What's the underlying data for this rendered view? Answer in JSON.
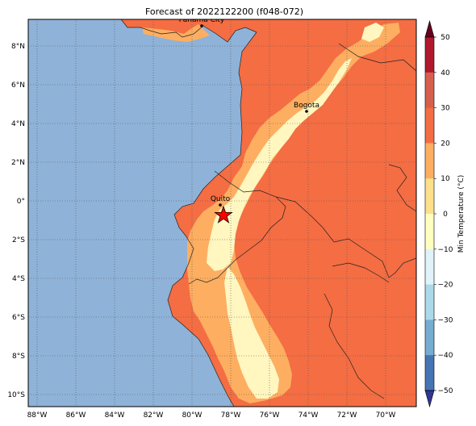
{
  "title": "Forecast of 2022122200 (f048-072)",
  "colorbar": {
    "label": "Min Temperature (°C)",
    "ticks": [
      "50",
      "40",
      "30",
      "20",
      "10",
      "0",
      "−10",
      "−20",
      "−30",
      "−40",
      "−50"
    ],
    "bands": [
      "#67001f",
      "#b2182b",
      "#d6604d",
      "#f46d43",
      "#fdae61",
      "#fee08b",
      "#ffffbf",
      "#e0f3f8",
      "#abd9e9",
      "#74add1",
      "#4575b4",
      "#313695"
    ]
  },
  "lat_labels": [
    "8°N",
    "6°N",
    "4°N",
    "2°N",
    "0°",
    "2°S",
    "4°S",
    "6°S",
    "8°S",
    "10°S"
  ],
  "lon_labels": [
    "88°W",
    "86°W",
    "84°W",
    "82°W",
    "80°W",
    "78°W",
    "76°W",
    "74°W",
    "72°W",
    "70°W"
  ],
  "cities": [
    {
      "name": "Panama City"
    },
    {
      "name": "Bogota"
    },
    {
      "name": "Quito"
    }
  ],
  "colors": {
    "ocean": "#8fb2d8",
    "temp_20_30": "#f46d43",
    "temp_10_20": "#fdae61",
    "temp_0_10": "#fff6c0",
    "marker": "#ff0000"
  }
}
